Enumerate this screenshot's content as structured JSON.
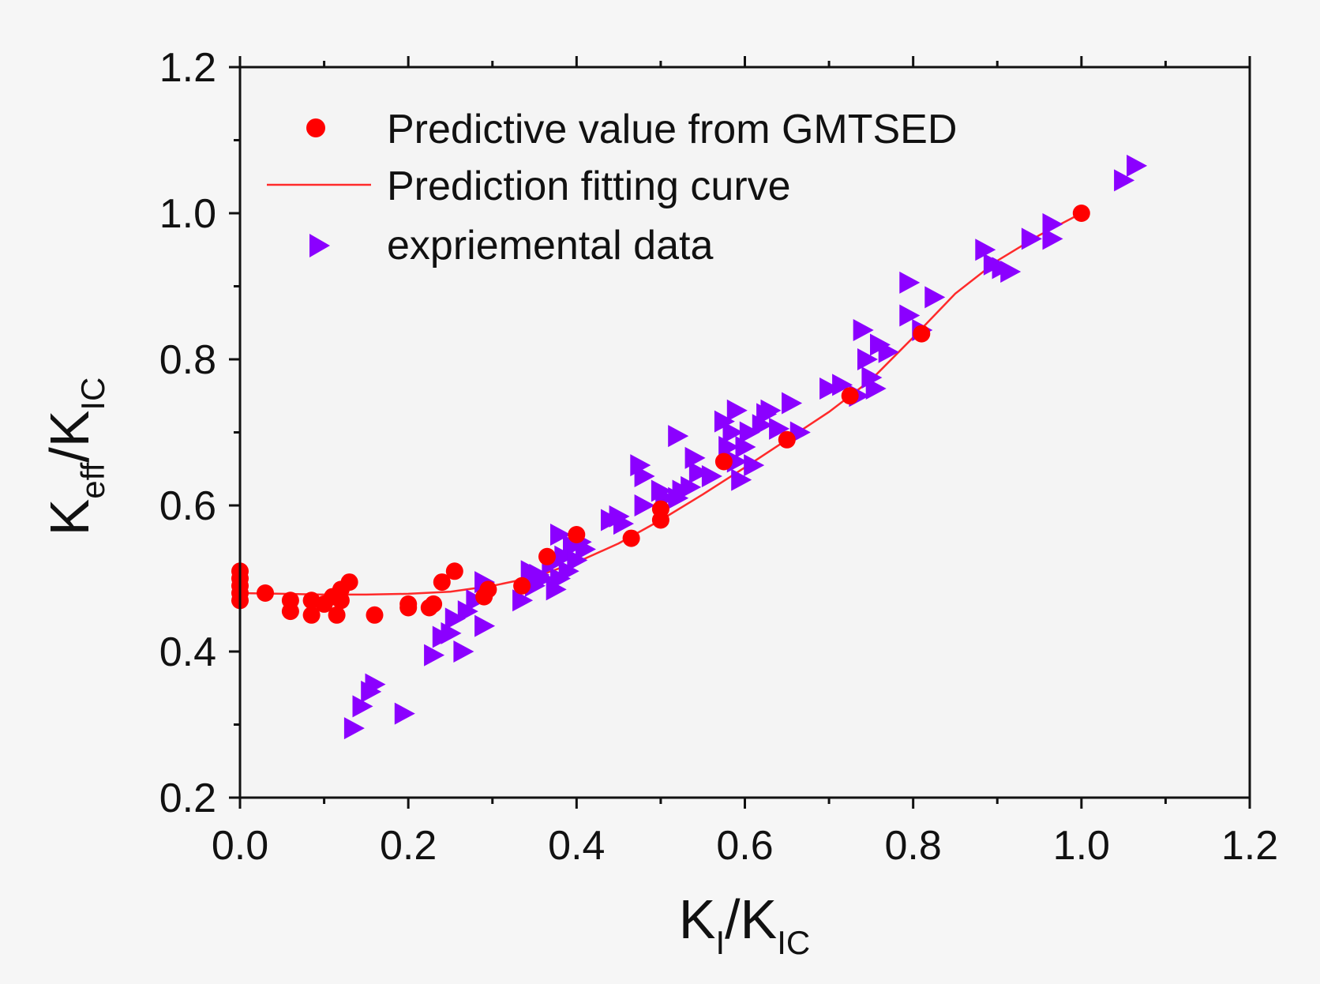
{
  "chart_data": {
    "type": "scatter",
    "xlim": [
      0.0,
      1.2
    ],
    "ylim": [
      0.2,
      1.2
    ],
    "x_ticks": [
      "0.0",
      "0.2",
      "0.4",
      "0.6",
      "0.8",
      "1.0",
      "1.2"
    ],
    "y_ticks": [
      "0.2",
      "0.4",
      "0.6",
      "0.8",
      "1.0",
      "1.2"
    ],
    "x_tick_values": [
      0.0,
      0.2,
      0.4,
      0.6,
      0.8,
      1.0,
      1.2
    ],
    "y_tick_values": [
      0.2,
      0.4,
      0.6,
      0.8,
      1.0,
      1.2
    ],
    "xlabel": {
      "base1": "K",
      "sub1": "I",
      "slash": "/K",
      "sub2": "IC"
    },
    "ylabel": {
      "base1": "K",
      "sub1": "eff",
      "slash": "/K",
      "sub2": "IC"
    },
    "legend": {
      "position": "top-left",
      "entries": [
        "Predictive value from GMTSED",
        "Prediction fitting curve",
        "expriemental data"
      ]
    },
    "colors": {
      "predictive": "#ff0000",
      "curve": "#ff2a2a",
      "experimental": "#8b00ff",
      "axis": "#111111"
    },
    "series": [
      {
        "name": "Predictive value from GMTSED",
        "kind": "scatter-circle",
        "points": [
          [
            0.0,
            0.48
          ],
          [
            0.0,
            0.5
          ],
          [
            0.0,
            0.51
          ],
          [
            0.0,
            0.49
          ],
          [
            0.0,
            0.47
          ],
          [
            0.03,
            0.48
          ],
          [
            0.06,
            0.47
          ],
          [
            0.06,
            0.455
          ],
          [
            0.085,
            0.45
          ],
          [
            0.085,
            0.47
          ],
          [
            0.1,
            0.465
          ],
          [
            0.11,
            0.475
          ],
          [
            0.115,
            0.45
          ],
          [
            0.12,
            0.47
          ],
          [
            0.12,
            0.485
          ],
          [
            0.13,
            0.495
          ],
          [
            0.16,
            0.45
          ],
          [
            0.2,
            0.46
          ],
          [
            0.2,
            0.465
          ],
          [
            0.225,
            0.46
          ],
          [
            0.23,
            0.465
          ],
          [
            0.24,
            0.495
          ],
          [
            0.255,
            0.51
          ],
          [
            0.29,
            0.475
          ],
          [
            0.295,
            0.485
          ],
          [
            0.335,
            0.49
          ],
          [
            0.365,
            0.53
          ],
          [
            0.4,
            0.56
          ],
          [
            0.465,
            0.555
          ],
          [
            0.5,
            0.58
          ],
          [
            0.5,
            0.595
          ],
          [
            0.575,
            0.66
          ],
          [
            0.65,
            0.69
          ],
          [
            0.725,
            0.75
          ],
          [
            0.81,
            0.835
          ],
          [
            1.0,
            1.0
          ]
        ]
      },
      {
        "name": "Prediction fitting curve",
        "kind": "line",
        "points": [
          [
            0.0,
            0.48
          ],
          [
            0.05,
            0.479
          ],
          [
            0.1,
            0.478
          ],
          [
            0.15,
            0.478
          ],
          [
            0.2,
            0.479
          ],
          [
            0.25,
            0.482
          ],
          [
            0.3,
            0.49
          ],
          [
            0.35,
            0.502
          ],
          [
            0.4,
            0.522
          ],
          [
            0.45,
            0.548
          ],
          [
            0.5,
            0.58
          ],
          [
            0.55,
            0.615
          ],
          [
            0.6,
            0.652
          ],
          [
            0.65,
            0.69
          ],
          [
            0.7,
            0.728
          ],
          [
            0.75,
            0.772
          ],
          [
            0.8,
            0.83
          ],
          [
            0.85,
            0.89
          ],
          [
            0.9,
            0.935
          ],
          [
            0.95,
            0.97
          ],
          [
            1.0,
            1.0
          ]
        ]
      },
      {
        "name": "expriemental data",
        "kind": "scatter-triangle",
        "points": [
          [
            0.135,
            0.295
          ],
          [
            0.145,
            0.325
          ],
          [
            0.155,
            0.345
          ],
          [
            0.16,
            0.355
          ],
          [
            0.195,
            0.315
          ],
          [
            0.23,
            0.395
          ],
          [
            0.24,
            0.42
          ],
          [
            0.25,
            0.425
          ],
          [
            0.255,
            0.445
          ],
          [
            0.265,
            0.4
          ],
          [
            0.27,
            0.455
          ],
          [
            0.28,
            0.47
          ],
          [
            0.29,
            0.435
          ],
          [
            0.29,
            0.495
          ],
          [
            0.335,
            0.47
          ],
          [
            0.345,
            0.51
          ],
          [
            0.35,
            0.49
          ],
          [
            0.355,
            0.505
          ],
          [
            0.36,
            0.5
          ],
          [
            0.37,
            0.52
          ],
          [
            0.375,
            0.485
          ],
          [
            0.38,
            0.5
          ],
          [
            0.38,
            0.56
          ],
          [
            0.385,
            0.53
          ],
          [
            0.39,
            0.51
          ],
          [
            0.395,
            0.545
          ],
          [
            0.4,
            0.525
          ],
          [
            0.405,
            0.55
          ],
          [
            0.41,
            0.54
          ],
          [
            0.44,
            0.58
          ],
          [
            0.45,
            0.585
          ],
          [
            0.455,
            0.575
          ],
          [
            0.475,
            0.655
          ],
          [
            0.48,
            0.6
          ],
          [
            0.48,
            0.64
          ],
          [
            0.5,
            0.62
          ],
          [
            0.505,
            0.61
          ],
          [
            0.52,
            0.695
          ],
          [
            0.52,
            0.61
          ],
          [
            0.525,
            0.62
          ],
          [
            0.535,
            0.625
          ],
          [
            0.54,
            0.665
          ],
          [
            0.545,
            0.645
          ],
          [
            0.56,
            0.64
          ],
          [
            0.575,
            0.715
          ],
          [
            0.58,
            0.68
          ],
          [
            0.585,
            0.7
          ],
          [
            0.59,
            0.73
          ],
          [
            0.59,
            0.66
          ],
          [
            0.595,
            0.635
          ],
          [
            0.6,
            0.68
          ],
          [
            0.605,
            0.7
          ],
          [
            0.61,
            0.655
          ],
          [
            0.62,
            0.71
          ],
          [
            0.625,
            0.725
          ],
          [
            0.63,
            0.73
          ],
          [
            0.64,
            0.705
          ],
          [
            0.655,
            0.74
          ],
          [
            0.665,
            0.7
          ],
          [
            0.7,
            0.76
          ],
          [
            0.715,
            0.765
          ],
          [
            0.735,
            0.75
          ],
          [
            0.74,
            0.84
          ],
          [
            0.745,
            0.8
          ],
          [
            0.75,
            0.775
          ],
          [
            0.755,
            0.76
          ],
          [
            0.76,
            0.82
          ],
          [
            0.77,
            0.81
          ],
          [
            0.795,
            0.905
          ],
          [
            0.795,
            0.86
          ],
          [
            0.81,
            0.84
          ],
          [
            0.825,
            0.885
          ],
          [
            0.885,
            0.95
          ],
          [
            0.895,
            0.93
          ],
          [
            0.905,
            0.925
          ],
          [
            0.915,
            0.92
          ],
          [
            0.94,
            0.965
          ],
          [
            0.965,
            0.985
          ],
          [
            0.965,
            0.965
          ],
          [
            1.05,
            1.045
          ],
          [
            1.065,
            1.065
          ]
        ]
      }
    ]
  }
}
